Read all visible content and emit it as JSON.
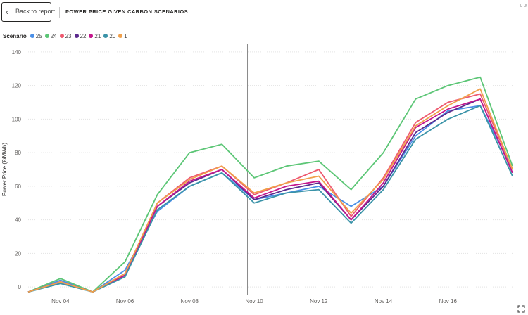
{
  "header": {
    "back_label": "Back to report",
    "title": "POWER PRICE GIVEN CARBON SCENARIOS"
  },
  "icons": {
    "back": "chevron-left-icon",
    "expand": "expand-icon",
    "focus": "focus-mode-icon"
  },
  "chart_data": {
    "type": "line",
    "title": "POWER PRICE GIVEN CARBON SCENARIOS",
    "xlabel": "",
    "ylabel": "Power Price (€/MWh)",
    "legend_title": "Scenario",
    "legend_position": "top-left",
    "ylim": [
      -5,
      145
    ],
    "yticks": [
      0,
      20,
      40,
      60,
      80,
      100,
      120,
      140
    ],
    "x_start": "2020-11-03",
    "x_end": "2020-11-18",
    "xticks": [
      "Nov 04",
      "Nov 06",
      "Nov 08",
      "Nov 10",
      "Nov 12",
      "Nov 14",
      "Nov 16"
    ],
    "grid": "horizontal dotted",
    "reference_line_x": "2020-11-09T19:00",
    "series_x": [
      "2020-11-03",
      "2020-11-04",
      "2020-11-05",
      "2020-11-06",
      "2020-11-07",
      "2020-11-08",
      "2020-11-09",
      "2020-11-10",
      "2020-11-11",
      "2020-11-12",
      "2020-11-13",
      "2020-11-14",
      "2020-11-15",
      "2020-11-16",
      "2020-11-17",
      "2020-11-18"
    ],
    "series": [
      {
        "name": "25",
        "color": "#4A8FE7",
        "values": [
          -3,
          4,
          -3,
          10,
          45,
          60,
          68,
          52,
          56,
          60,
          48,
          60,
          90,
          105,
          108,
          70
        ]
      },
      {
        "name": "24",
        "color": "#5CC676",
        "values": [
          -3,
          5,
          -3,
          15,
          55,
          80,
          85,
          65,
          72,
          75,
          58,
          80,
          112,
          120,
          125,
          72
        ]
      },
      {
        "name": "23",
        "color": "#EE5A6F",
        "values": [
          -3,
          3,
          -3,
          8,
          50,
          65,
          72,
          55,
          62,
          70,
          42,
          65,
          98,
          110,
          115,
          70
        ]
      },
      {
        "name": "22",
        "color": "#5B2A8E",
        "values": [
          -3,
          3,
          -3,
          7,
          48,
          62,
          70,
          52,
          58,
          62,
          40,
          60,
          92,
          104,
          112,
          68
        ]
      },
      {
        "name": "21",
        "color": "#C4178D",
        "values": [
          -3,
          3,
          -3,
          7,
          48,
          63,
          70,
          53,
          60,
          63,
          40,
          62,
          95,
          106,
          112,
          68
        ]
      },
      {
        "name": "20",
        "color": "#3A93A8",
        "values": [
          -3,
          2,
          -3,
          6,
          46,
          60,
          68,
          50,
          56,
          58,
          38,
          58,
          88,
          100,
          108,
          66
        ]
      },
      {
        "name": "1",
        "color": "#F0A04B",
        "values": [
          -3,
          3,
          -3,
          8,
          50,
          64,
          72,
          56,
          62,
          66,
          44,
          64,
          96,
          108,
          118,
          70
        ]
      }
    ]
  }
}
